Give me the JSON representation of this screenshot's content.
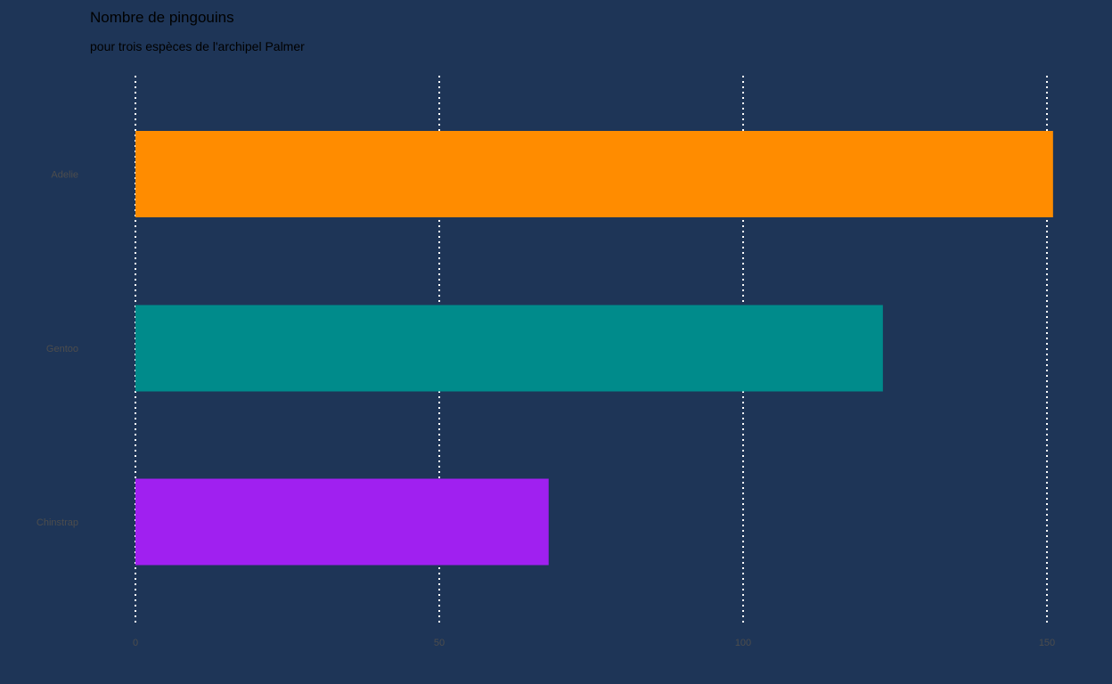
{
  "chart_data": {
    "type": "bar",
    "orientation": "horizontal",
    "title": "Nombre de pingouins",
    "subtitle": "pour trois espèces de l'archipel Palmer",
    "xlabel": "",
    "ylabel": "",
    "categories": [
      "Adelie",
      "Gentoo",
      "Chinstrap"
    ],
    "values": [
      151,
      123,
      68
    ],
    "colors": [
      "#ff8c00",
      "#008b8b",
      "#a020f0"
    ],
    "xlim": [
      0,
      150
    ],
    "xticks": [
      0,
      50,
      100,
      150
    ],
    "xtick_labels": [
      "0",
      "50",
      "100",
      "150"
    ],
    "grid": "vertical dotted white",
    "legend": "none",
    "background": "#1e3557"
  }
}
